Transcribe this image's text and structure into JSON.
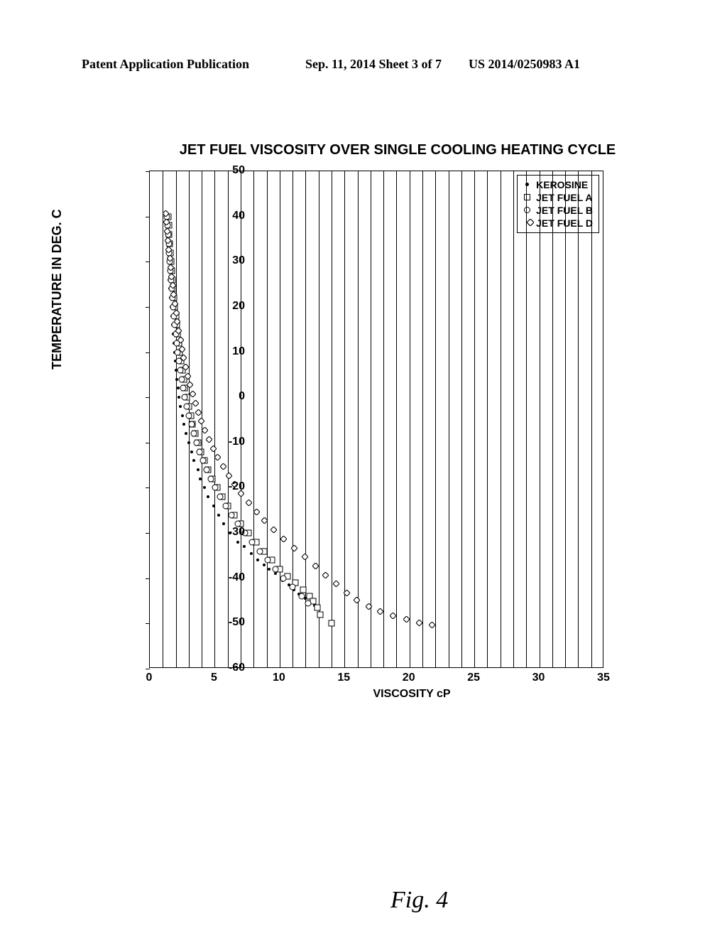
{
  "header": {
    "left": "Patent Application Publication",
    "center": "Sep. 11, 2014  Sheet 3 of 7",
    "right": "US 2014/0250983 A1"
  },
  "chart": {
    "type": "scatter",
    "title": "JET FUEL VISCOSITY OVER SINGLE COOLING HEATING CYCLE",
    "xaxis_title": "VISCOSITY cP",
    "yaxis_title": "TEMPERATURE IN DEG. C",
    "fig_label": "Fig. 4",
    "xlim": [
      0,
      35
    ],
    "ylim": [
      -60,
      50
    ],
    "xtick_step": 5,
    "ytick_step": 10,
    "vertical_gridlines": 35,
    "background_color": "#ffffff",
    "axis_color": "#000000",
    "title_fontsize": 20,
    "label_fontsize": 16,
    "tick_fontweight": "bold",
    "marker_size": 7,
    "series": [
      {
        "name": "KEROSINE",
        "marker": "dot",
        "color": "#000000",
        "xy": [
          [
            1.2,
            40
          ],
          [
            1.25,
            38
          ],
          [
            1.3,
            36
          ],
          [
            1.35,
            34
          ],
          [
            1.38,
            32
          ],
          [
            1.4,
            30
          ],
          [
            1.45,
            28
          ],
          [
            1.5,
            26
          ],
          [
            1.55,
            24
          ],
          [
            1.6,
            22
          ],
          [
            1.65,
            20
          ],
          [
            1.7,
            18
          ],
          [
            1.75,
            16
          ],
          [
            1.8,
            14
          ],
          [
            1.85,
            12
          ],
          [
            1.9,
            10
          ],
          [
            1.95,
            8
          ],
          [
            2.0,
            6
          ],
          [
            2.1,
            4
          ],
          [
            2.18,
            2
          ],
          [
            2.25,
            0
          ],
          [
            2.35,
            -2
          ],
          [
            2.5,
            -4
          ],
          [
            2.65,
            -6
          ],
          [
            2.8,
            -8
          ],
          [
            3.0,
            -10
          ],
          [
            3.2,
            -12
          ],
          [
            3.4,
            -14
          ],
          [
            3.7,
            -16
          ],
          [
            3.9,
            -18
          ],
          [
            4.2,
            -20
          ],
          [
            4.5,
            -22
          ],
          [
            4.9,
            -24
          ],
          [
            5.3,
            -26
          ],
          [
            5.7,
            -28
          ],
          [
            6.2,
            -30
          ],
          [
            6.8,
            -32
          ],
          [
            7.3,
            -33
          ],
          [
            7.8,
            -34.5
          ],
          [
            8.3,
            -36
          ],
          [
            8.8,
            -37
          ],
          [
            9.2,
            -38
          ],
          [
            9.7,
            -39
          ],
          [
            10.2,
            -40.5
          ],
          [
            10.7,
            -41.5
          ],
          [
            11.1,
            -42.5
          ],
          [
            11.5,
            -43.5
          ],
          [
            12.0,
            -44.5
          ],
          [
            12.3,
            -45.2
          ],
          [
            12.7,
            -46
          ]
        ]
      },
      {
        "name": "JET FUEL A",
        "marker": "square",
        "color": "#000000",
        "xy": [
          [
            1.4,
            40
          ],
          [
            1.45,
            38
          ],
          [
            1.5,
            36
          ],
          [
            1.55,
            34
          ],
          [
            1.6,
            32
          ],
          [
            1.65,
            30
          ],
          [
            1.7,
            28
          ],
          [
            1.75,
            26
          ],
          [
            1.8,
            24
          ],
          [
            1.85,
            22
          ],
          [
            1.92,
            20
          ],
          [
            2.0,
            18
          ],
          [
            2.08,
            16
          ],
          [
            2.15,
            14
          ],
          [
            2.22,
            12
          ],
          [
            2.3,
            10
          ],
          [
            2.4,
            8
          ],
          [
            2.5,
            6
          ],
          [
            2.6,
            4
          ],
          [
            2.7,
            2
          ],
          [
            2.85,
            0
          ],
          [
            3.0,
            -2
          ],
          [
            3.15,
            -4
          ],
          [
            3.3,
            -6
          ],
          [
            3.5,
            -8
          ],
          [
            3.7,
            -10
          ],
          [
            3.95,
            -12
          ],
          [
            4.2,
            -14
          ],
          [
            4.5,
            -16
          ],
          [
            4.8,
            -18
          ],
          [
            5.2,
            -20
          ],
          [
            5.6,
            -22
          ],
          [
            6.0,
            -24
          ],
          [
            6.5,
            -26
          ],
          [
            7.0,
            -28
          ],
          [
            7.6,
            -30
          ],
          [
            8.2,
            -32
          ],
          [
            8.8,
            -34
          ],
          [
            9.4,
            -36
          ],
          [
            10.0,
            -38
          ],
          [
            10.6,
            -39.5
          ],
          [
            11.2,
            -41
          ],
          [
            11.8,
            -42.5
          ],
          [
            12.3,
            -44
          ],
          [
            12.6,
            -45
          ],
          [
            12.9,
            -46.5
          ],
          [
            13.1,
            -48
          ],
          [
            14.0,
            -50
          ]
        ]
      },
      {
        "name": "JET FUEL B",
        "marker": "circle",
        "color": "#000000",
        "xy": [
          [
            1.3,
            40
          ],
          [
            1.35,
            38
          ],
          [
            1.4,
            36
          ],
          [
            1.45,
            34
          ],
          [
            1.48,
            32
          ],
          [
            1.52,
            30
          ],
          [
            1.58,
            28
          ],
          [
            1.63,
            26
          ],
          [
            1.68,
            24
          ],
          [
            1.74,
            22
          ],
          [
            1.8,
            20
          ],
          [
            1.86,
            18
          ],
          [
            1.93,
            16
          ],
          [
            2.0,
            14
          ],
          [
            2.08,
            12
          ],
          [
            2.16,
            10
          ],
          [
            2.25,
            8
          ],
          [
            2.35,
            6
          ],
          [
            2.45,
            4
          ],
          [
            2.55,
            2
          ],
          [
            2.7,
            0
          ],
          [
            2.85,
            -2
          ],
          [
            3.0,
            -4
          ],
          [
            3.2,
            -6
          ],
          [
            3.4,
            -8
          ],
          [
            3.6,
            -10
          ],
          [
            3.85,
            -12
          ],
          [
            4.1,
            -14
          ],
          [
            4.4,
            -16
          ],
          [
            4.7,
            -18
          ],
          [
            5.05,
            -20
          ],
          [
            5.4,
            -22
          ],
          [
            5.85,
            -24
          ],
          [
            6.3,
            -26
          ],
          [
            6.8,
            -28
          ],
          [
            7.35,
            -30
          ],
          [
            7.9,
            -32
          ],
          [
            8.5,
            -34
          ],
          [
            9.1,
            -36
          ],
          [
            9.7,
            -38
          ],
          [
            10.3,
            -40
          ],
          [
            11.0,
            -42
          ],
          [
            11.7,
            -44
          ],
          [
            12.2,
            -45.5
          ]
        ]
      },
      {
        "name": "JET FUEL D",
        "marker": "diamond",
        "color": "#000000",
        "xy": [
          [
            1.5,
            40
          ],
          [
            1.55,
            38
          ],
          [
            1.6,
            36
          ],
          [
            1.65,
            34
          ],
          [
            1.7,
            32
          ],
          [
            1.78,
            30
          ],
          [
            1.85,
            28
          ],
          [
            1.93,
            26
          ],
          [
            2.0,
            24
          ],
          [
            2.08,
            22
          ],
          [
            2.17,
            20
          ],
          [
            2.27,
            18
          ],
          [
            2.37,
            16
          ],
          [
            2.48,
            14
          ],
          [
            2.6,
            12
          ],
          [
            2.73,
            10
          ],
          [
            2.87,
            8
          ],
          [
            3.02,
            6
          ],
          [
            3.18,
            4
          ],
          [
            3.35,
            2
          ],
          [
            3.55,
            0
          ],
          [
            3.75,
            -2
          ],
          [
            3.98,
            -4
          ],
          [
            4.22,
            -6
          ],
          [
            4.5,
            -8
          ],
          [
            4.8,
            -10
          ],
          [
            5.12,
            -12
          ],
          [
            5.48,
            -14
          ],
          [
            5.88,
            -16
          ],
          [
            6.32,
            -18
          ],
          [
            6.8,
            -20
          ],
          [
            7.3,
            -22
          ],
          [
            7.85,
            -24
          ],
          [
            8.45,
            -26
          ],
          [
            9.1,
            -28
          ],
          [
            9.8,
            -30
          ],
          [
            10.55,
            -32
          ],
          [
            11.35,
            -34
          ],
          [
            12.2,
            -36
          ],
          [
            13.0,
            -38
          ],
          [
            13.8,
            -40
          ],
          [
            14.6,
            -42
          ],
          [
            15.4,
            -44
          ],
          [
            16.2,
            -45.5
          ],
          [
            17.1,
            -47
          ],
          [
            18.0,
            -48
          ],
          [
            19.0,
            -49
          ],
          [
            20.0,
            -49.8
          ],
          [
            21.0,
            -50.5
          ],
          [
            22.0,
            -51
          ]
        ]
      }
    ]
  }
}
